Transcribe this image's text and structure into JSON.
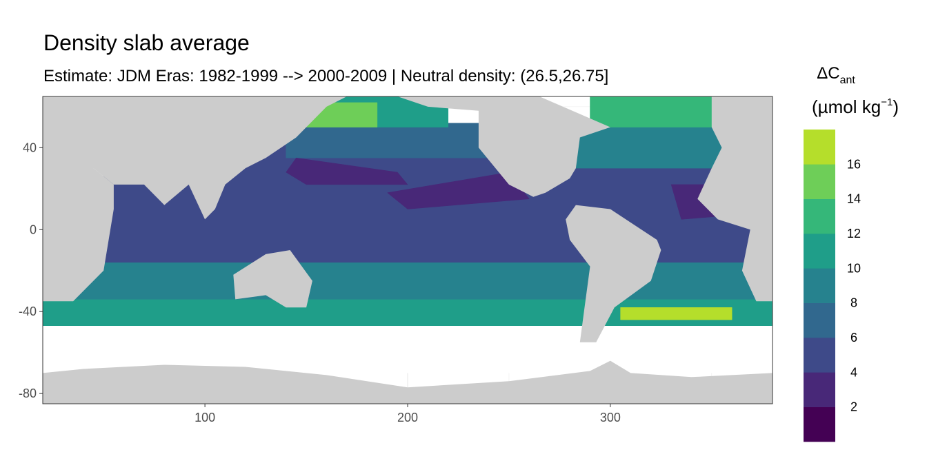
{
  "chart_data": {
    "type": "heatmap",
    "title": "Density slab average",
    "subtitle": "Estimate: JDM Eras: 1982-1999 --> 2000-2009 | Neutral density: (26.5,26.75]",
    "xlabel": "",
    "ylabel": "",
    "xlim": [
      20,
      380
    ],
    "ylim": [
      -85,
      65
    ],
    "x_ticks": [
      100,
      200,
      300
    ],
    "y_ticks": [
      40,
      0,
      -40,
      -80
    ],
    "x_tick_labels": [
      "100",
      "200",
      "300"
    ],
    "y_tick_labels": [
      "40",
      "0",
      "-40",
      "-80"
    ],
    "grid": true,
    "legend": {
      "title_main": "ΔC",
      "title_sub": "ant",
      "unit_prefix": "(µmol kg",
      "unit_exp": "−1",
      "unit_suffix": ")",
      "position": "right",
      "breaks": [
        0,
        2,
        4,
        6,
        8,
        10,
        12,
        14,
        16,
        18
      ],
      "labels": [
        "2",
        "4",
        "6",
        "8",
        "10",
        "12",
        "14",
        "16"
      ],
      "colors": [
        "#440154",
        "#482878",
        "#3e4a89",
        "#31688e",
        "#26828e",
        "#1f9e89",
        "#35b779",
        "#6ece58",
        "#b5de2b",
        "#fde725"
      ]
    },
    "land_color": "#cccccc",
    "nodata_color": "#ffffff",
    "ocean_regions": [
      {
        "name": "Southern Ocean band",
        "value": 11,
        "polygon": [
          [
            20,
            -34
          ],
          [
            380,
            -34
          ],
          [
            380,
            -47
          ],
          [
            20,
            -47
          ]
        ]
      },
      {
        "name": "South subtropical band",
        "value": 9,
        "polygon": [
          [
            20,
            -16
          ],
          [
            380,
            -16
          ],
          [
            380,
            -34
          ],
          [
            20,
            -34
          ]
        ]
      },
      {
        "name": "Indian Ocean",
        "value": 5,
        "polygon": [
          [
            20,
            26
          ],
          [
            115,
            26
          ],
          [
            115,
            -16
          ],
          [
            20,
            -16
          ]
        ]
      },
      {
        "name": "Pacific / Atlantic tropics",
        "value": 5,
        "polygon": [
          [
            115,
            45
          ],
          [
            380,
            45
          ],
          [
            380,
            -16
          ],
          [
            115,
            -16
          ]
        ]
      },
      {
        "name": "North Pacific",
        "value": 7,
        "polygon": [
          [
            140,
            52
          ],
          [
            260,
            52
          ],
          [
            260,
            35
          ],
          [
            140,
            35
          ]
        ]
      },
      {
        "name": "Subpolar North Pacific",
        "value": 10,
        "polygon": [
          [
            145,
            65
          ],
          [
            220,
            65
          ],
          [
            220,
            50
          ],
          [
            145,
            50
          ]
        ]
      },
      {
        "name": "Kuroshio extension",
        "value": 14,
        "polygon": [
          [
            145,
            62
          ],
          [
            185,
            62
          ],
          [
            185,
            50
          ],
          [
            145,
            50
          ]
        ]
      },
      {
        "name": "North Atlantic",
        "value": 8,
        "polygon": [
          [
            270,
            50
          ],
          [
            380,
            50
          ],
          [
            380,
            30
          ],
          [
            270,
            30
          ]
        ]
      },
      {
        "name": "Subpolar North Atlantic",
        "value": 12,
        "polygon": [
          [
            290,
            65
          ],
          [
            380,
            65
          ],
          [
            380,
            50
          ],
          [
            290,
            50
          ]
        ]
      },
      {
        "name": "NW Pacific low",
        "value": 3,
        "polygon": [
          [
            145,
            35
          ],
          [
            195,
            28
          ],
          [
            200,
            22
          ],
          [
            150,
            22
          ],
          [
            140,
            28
          ]
        ]
      },
      {
        "name": "East Pacific low",
        "value": 3,
        "polygon": [
          [
            190,
            18
          ],
          [
            250,
            28
          ],
          [
            260,
            15
          ],
          [
            200,
            10
          ]
        ]
      },
      {
        "name": "Tropical Atlantic low",
        "value": 3,
        "polygon": [
          [
            330,
            22
          ],
          [
            372,
            22
          ],
          [
            372,
            8
          ],
          [
            335,
            5
          ]
        ]
      },
      {
        "name": "South Atlantic high",
        "value": 16,
        "polygon": [
          [
            305,
            -38
          ],
          [
            360,
            -38
          ],
          [
            360,
            -44
          ],
          [
            305,
            -44
          ]
        ]
      }
    ],
    "land_masses": [
      {
        "name": "Africa and Eurasia west",
        "polygon": [
          [
            20,
            -35
          ],
          [
            20,
            65
          ],
          [
            45,
            65
          ],
          [
            45,
            30
          ],
          [
            55,
            22
          ],
          [
            55,
            10
          ],
          [
            50,
            -20
          ],
          [
            35,
            -35
          ]
        ]
      },
      {
        "name": "Asia",
        "polygon": [
          [
            45,
            65
          ],
          [
            170,
            65
          ],
          [
            160,
            60
          ],
          [
            145,
            45
          ],
          [
            130,
            35
          ],
          [
            120,
            30
          ],
          [
            110,
            22
          ],
          [
            105,
            10
          ],
          [
            100,
            5
          ],
          [
            92,
            22
          ],
          [
            80,
            12
          ],
          [
            70,
            22
          ],
          [
            55,
            22
          ],
          [
            45,
            30
          ]
        ]
      },
      {
        "name": "Australia",
        "polygon": [
          [
            114,
            -22
          ],
          [
            130,
            -12
          ],
          [
            142,
            -10
          ],
          [
            153,
            -25
          ],
          [
            150,
            -38
          ],
          [
            140,
            -38
          ],
          [
            130,
            -32
          ],
          [
            115,
            -34
          ]
        ]
      },
      {
        "name": "North America",
        "polygon": [
          [
            195,
            65
          ],
          [
            265,
            65
          ],
          [
            300,
            50
          ],
          [
            285,
            45
          ],
          [
            283,
            30
          ],
          [
            280,
            25
          ],
          [
            268,
            18
          ],
          [
            262,
            16
          ],
          [
            250,
            22
          ],
          [
            235,
            40
          ],
          [
            235,
            58
          ],
          [
            210,
            60
          ]
        ]
      },
      {
        "name": "South America",
        "polygon": [
          [
            283,
            12
          ],
          [
            300,
            10
          ],
          [
            323,
            -5
          ],
          [
            325,
            -10
          ],
          [
            320,
            -25
          ],
          [
            302,
            -38
          ],
          [
            293,
            -55
          ],
          [
            285,
            -55
          ],
          [
            287,
            -40
          ],
          [
            290,
            -18
          ],
          [
            280,
            -5
          ],
          [
            278,
            5
          ]
        ]
      },
      {
        "name": "Europe and Africa east",
        "polygon": [
          [
            350,
            65
          ],
          [
            380,
            65
          ],
          [
            380,
            -35
          ],
          [
            372,
            -35
          ],
          [
            365,
            -20
          ],
          [
            369,
            0
          ],
          [
            353,
            5
          ],
          [
            343,
            15
          ],
          [
            350,
            30
          ],
          [
            355,
            40
          ],
          [
            350,
            50
          ]
        ]
      },
      {
        "name": "Antarctica",
        "polygon": [
          [
            20,
            -70
          ],
          [
            40,
            -68
          ],
          [
            80,
            -66
          ],
          [
            120,
            -67
          ],
          [
            160,
            -71
          ],
          [
            200,
            -77
          ],
          [
            250,
            -74
          ],
          [
            290,
            -69
          ],
          [
            300,
            -64
          ],
          [
            310,
            -70
          ],
          [
            340,
            -72
          ],
          [
            380,
            -70
          ],
          [
            380,
            -85
          ],
          [
            20,
            -85
          ]
        ]
      }
    ],
    "nodata_regions": [
      {
        "name": "Southern high latitudes",
        "polygon": [
          [
            20,
            -47
          ],
          [
            380,
            -47
          ],
          [
            380,
            -70
          ],
          [
            20,
            -70
          ]
        ]
      }
    ]
  }
}
